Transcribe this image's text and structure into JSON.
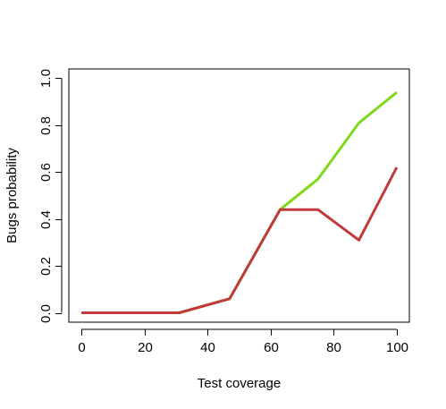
{
  "chart_data": {
    "type": "line",
    "title": "",
    "xlabel": "Test coverage",
    "ylabel": "Bugs probability",
    "xlim": [
      -4,
      104
    ],
    "ylim": [
      -0.04,
      1.04
    ],
    "x_ticks": [
      0,
      20,
      40,
      60,
      80,
      100
    ],
    "y_ticks": [
      0.0,
      0.2,
      0.4,
      0.6,
      0.8,
      1.0
    ],
    "x_tick_labels": [
      "0",
      "20",
      "40",
      "60",
      "80",
      "100"
    ],
    "y_tick_labels": [
      "0.0",
      "0.2",
      "0.4",
      "0.6",
      "0.8",
      "1.0"
    ],
    "grid": false,
    "legend": "none",
    "series": [
      {
        "color": "#7ED91A",
        "x": [
          0,
          16,
          31,
          47,
          63,
          75,
          88,
          100
        ],
        "y": [
          0.0,
          0.0,
          0.0,
          0.06,
          0.44,
          0.57,
          0.81,
          0.94
        ]
      },
      {
        "color": "#C0393B",
        "x": [
          0,
          16,
          31,
          47,
          63,
          75,
          88,
          100
        ],
        "y": [
          0.0,
          0.0,
          0.0,
          0.06,
          0.44,
          0.44,
          0.31,
          0.62
        ]
      }
    ]
  }
}
